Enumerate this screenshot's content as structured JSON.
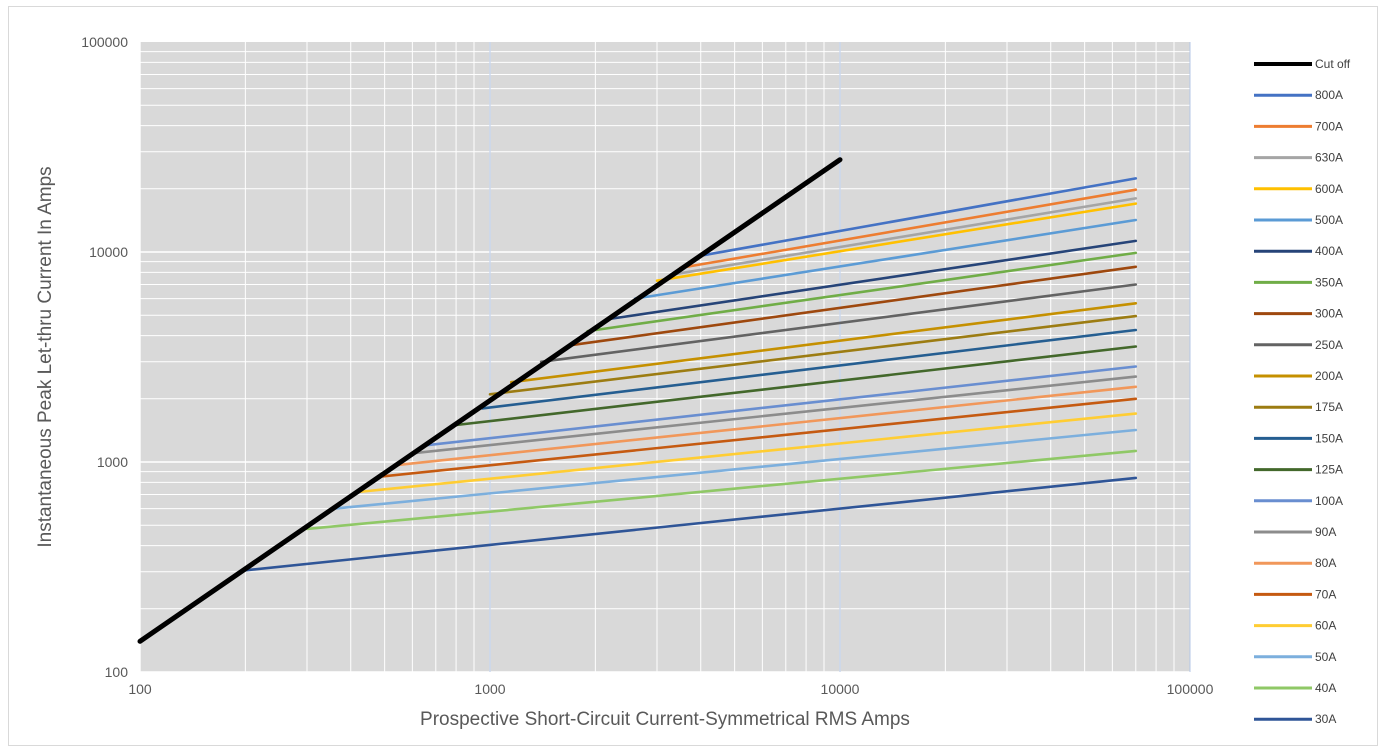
{
  "chart_data": {
    "type": "line",
    "title": "",
    "xlabel": "Prospective Short-Circuit Current-Symmetrical RMS Amps",
    "ylabel": "Instantaneous Peak Let-thru Current In Amps",
    "xscale": "log",
    "yscale": "log",
    "xlim": [
      100,
      100000
    ],
    "ylim": [
      100,
      100000
    ],
    "x_ticks": [
      "100",
      "1000",
      "10000",
      "100000"
    ],
    "y_ticks": [
      "100",
      "1000",
      "10000",
      "100000"
    ],
    "grid": true,
    "plot_background": "#d9d9d9",
    "grid_color": "#ffffff",
    "legend_position": "right",
    "series": [
      {
        "name": "Cut off",
        "color": "#000000",
        "x": [
          100,
          10000
        ],
        "y": [
          140,
          27500
        ]
      },
      {
        "name": "800A",
        "color": "#4472c4",
        "x": [
          4000,
          70000
        ],
        "y": [
          9600,
          22400
        ]
      },
      {
        "name": "700A",
        "color": "#ed7d31",
        "x": [
          3500,
          70000
        ],
        "y": [
          8400,
          19800
        ]
      },
      {
        "name": "630A",
        "color": "#a5a5a5",
        "x": [
          3300,
          70000
        ],
        "y": [
          7800,
          18000
        ]
      },
      {
        "name": "600A",
        "color": "#ffc000",
        "x": [
          3000,
          70000
        ],
        "y": [
          7300,
          17000
        ]
      },
      {
        "name": "500A",
        "color": "#5b9bd5",
        "x": [
          2600,
          70000
        ],
        "y": [
          6000,
          14200
        ]
      },
      {
        "name": "400A",
        "color": "#264478",
        "x": [
          2200,
          70000
        ],
        "y": [
          4800,
          11300
        ]
      },
      {
        "name": "350A",
        "color": "#70ad47",
        "x": [
          1900,
          70000
        ],
        "y": [
          4200,
          9900
        ]
      },
      {
        "name": "300A",
        "color": "#9e480e",
        "x": [
          1700,
          70000
        ],
        "y": [
          3600,
          8500
        ]
      },
      {
        "name": "250A",
        "color": "#636363",
        "x": [
          1400,
          70000
        ],
        "y": [
          3000,
          7000
        ]
      },
      {
        "name": "200A",
        "color": "#c59000",
        "x": [
          1150,
          70000
        ],
        "y": [
          2400,
          5700
        ]
      },
      {
        "name": "175A",
        "color": "#9c7c12",
        "x": [
          1000,
          70000
        ],
        "y": [
          2100,
          4950
        ]
      },
      {
        "name": "150A",
        "color": "#255e91",
        "x": [
          950,
          70000
        ],
        "y": [
          1800,
          4250
        ]
      },
      {
        "name": "125A",
        "color": "#43682b",
        "x": [
          800,
          70000
        ],
        "y": [
          1500,
          3550
        ]
      },
      {
        "name": "100A",
        "color": "#698ed0",
        "x": [
          650,
          70000
        ],
        "y": [
          1200,
          2850
        ]
      },
      {
        "name": "90A",
        "color": "#8c8c8c",
        "x": [
          600,
          70000
        ],
        "y": [
          1100,
          2550
        ]
      },
      {
        "name": "80A",
        "color": "#f1975a",
        "x": [
          550,
          70000
        ],
        "y": [
          970,
          2280
        ]
      },
      {
        "name": "70A",
        "color": "#c55a11",
        "x": [
          480,
          70000
        ],
        "y": [
          850,
          2000
        ]
      },
      {
        "name": "60A",
        "color": "#ffcd33",
        "x": [
          420,
          70000
        ],
        "y": [
          720,
          1700
        ]
      },
      {
        "name": "50A",
        "color": "#7cafdd",
        "x": [
          360,
          70000
        ],
        "y": [
          600,
          1420
        ]
      },
      {
        "name": "40A",
        "color": "#8fc866",
        "x": [
          300,
          70000
        ],
        "y": [
          480,
          1130
        ]
      },
      {
        "name": "30A",
        "color": "#2f5597",
        "x": [
          200,
          70000
        ],
        "y": [
          305,
          840
        ]
      }
    ]
  }
}
